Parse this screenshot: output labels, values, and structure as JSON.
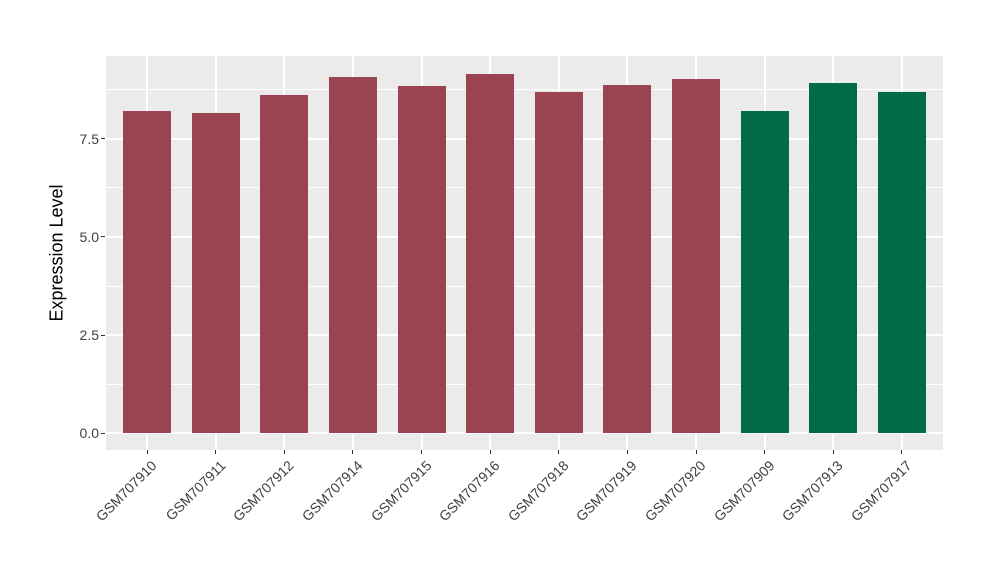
{
  "chart_data": {
    "type": "bar",
    "title": "",
    "xlabel": "",
    "ylabel": "Expression Level",
    "categories": [
      "GSM707910",
      "GSM707911",
      "GSM707912",
      "GSM707914",
      "GSM707915",
      "GSM707916",
      "GSM707918",
      "GSM707919",
      "GSM707920",
      "GSM707909",
      "GSM707913",
      "GSM707917"
    ],
    "values": [
      8.2,
      8.15,
      8.6,
      9.07,
      8.84,
      9.15,
      8.69,
      8.86,
      9.02,
      8.19,
      8.92,
      8.69
    ],
    "bar_groups": [
      "maroon",
      "maroon",
      "maroon",
      "maroon",
      "maroon",
      "maroon",
      "maroon",
      "maroon",
      "maroon",
      "green",
      "green",
      "green"
    ],
    "group_colors": {
      "maroon": "#9a4452",
      "green": "#016a46"
    },
    "ytick_labels": [
      "0.0",
      "2.5",
      "5.0",
      "7.5"
    ],
    "ytick_values": [
      0,
      2.5,
      5,
      7.5
    ],
    "yminor_values": [
      1.25,
      3.75,
      6.25,
      8.75
    ],
    "ylim": [
      -0.42,
      9.6
    ],
    "legend": "none",
    "grid": "on",
    "panel_bg": "#ebebeb",
    "grid_color": "#ffffff",
    "axis_text_color": "#404040",
    "tick_mark_color": "#333333",
    "bar_width_frac": 0.7
  }
}
